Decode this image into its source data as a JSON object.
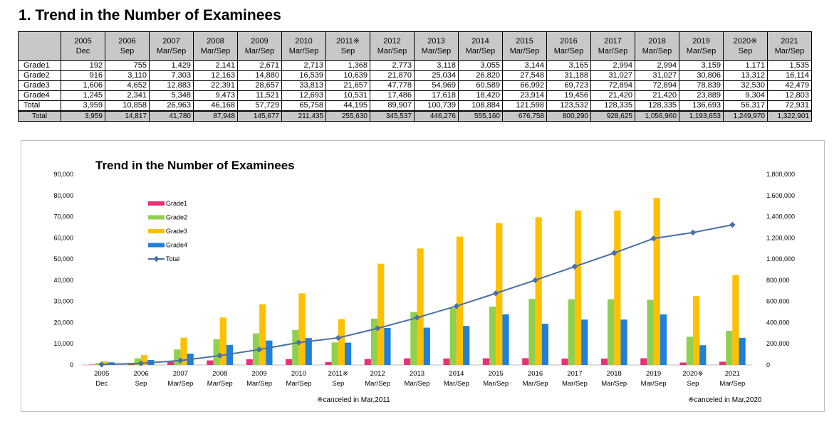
{
  "page": {
    "title": "1.  Trend in the Number of Examinees"
  },
  "table": {
    "headers": [
      [
        "2005",
        "Dec"
      ],
      [
        "2006",
        "Sep"
      ],
      [
        "2007",
        "Mar/Sep"
      ],
      [
        "2008",
        "Mar/Sep"
      ],
      [
        "2009",
        "Mar/Sep"
      ],
      [
        "2010",
        "Mar/Sep"
      ],
      [
        "2011※",
        "Sep"
      ],
      [
        "2012",
        "Mar/Sep"
      ],
      [
        "2013",
        "Mar/Sep"
      ],
      [
        "2014",
        "Mar/Sep"
      ],
      [
        "2015",
        "Mar/Sep"
      ],
      [
        "2016",
        "Mar/Sep"
      ],
      [
        "2017",
        "Mar/Sep"
      ],
      [
        "2018",
        "Mar/Sep"
      ],
      [
        "2019",
        "Mar/Sep"
      ],
      [
        "2020※",
        "Sep"
      ],
      [
        "2021",
        "Mar/Sep"
      ]
    ],
    "rows": [
      {
        "label": "Grade1",
        "values": [
          "192",
          "755",
          "1,429",
          "2,141",
          "2,671",
          "2,713",
          "1,368",
          "2,773",
          "3,118",
          "3,055",
          "3,144",
          "3,165",
          "2,994",
          "2,994",
          "3,159",
          "1,171",
          "1,535"
        ]
      },
      {
        "label": "Grade2",
        "values": [
          "916",
          "3,110",
          "7,303",
          "12,163",
          "14,880",
          "16,539",
          "10,639",
          "21,870",
          "25,034",
          "26,820",
          "27,548",
          "31,188",
          "31,027",
          "31,027",
          "30,806",
          "13,312",
          "16,114"
        ]
      },
      {
        "label": "Grade3",
        "values": [
          "1,606",
          "4,652",
          "12,883",
          "22,391",
          "28,657",
          "33,813",
          "21,657",
          "47,778",
          "54,969",
          "60,589",
          "66,992",
          "69,723",
          "72,894",
          "72,894",
          "78,839",
          "32,530",
          "42,479"
        ]
      },
      {
        "label": "Grade4",
        "values": [
          "1,245",
          "2,341",
          "5,348",
          "9,473",
          "11,521",
          "12,693",
          "10,531",
          "17,486",
          "17,618",
          "18,420",
          "23,914",
          "19,456",
          "21,420",
          "21,420",
          "23,889",
          "9,304",
          "12,803"
        ]
      },
      {
        "label": "Total",
        "values": [
          "3,959",
          "10,858",
          "26,963",
          "46,168",
          "57,729",
          "65,758",
          "44,195",
          "89,907",
          "100,739",
          "108,884",
          "121,598",
          "123,532",
          "128,335",
          "128,335",
          "136,693",
          "56,317",
          "72,931"
        ]
      }
    ],
    "grand_total": {
      "label": "Total",
      "values": [
        "3,959",
        "14,817",
        "41,780",
        "87,948",
        "145,677",
        "211,435",
        "255,630",
        "345,537",
        "446,276",
        "555,160",
        "676,758",
        "800,290",
        "928,625",
        "1,056,960",
        "1,193,653",
        "1,249,970",
        "1,322,901"
      ]
    }
  },
  "chart_data": {
    "type": "bar",
    "title": "Trend in the Number of Examinees",
    "categories": [
      [
        "2005",
        "Dec"
      ],
      [
        "2006",
        "Sep"
      ],
      [
        "2007",
        "Mar/Sep"
      ],
      [
        "2008",
        "Mar/Sep"
      ],
      [
        "2009",
        "Mar/Sep"
      ],
      [
        "2010",
        "Mar/Sep"
      ],
      [
        "2011※",
        "Sep"
      ],
      [
        "2012",
        "Mar/Sep"
      ],
      [
        "2013",
        "Mar/Sep"
      ],
      [
        "2014",
        "Mar/Sep"
      ],
      [
        "2015",
        "Mar/Sep"
      ],
      [
        "2016",
        "Mar/Sep"
      ],
      [
        "2017",
        "Mar/Sep"
      ],
      [
        "2018",
        "Mar/Sep"
      ],
      [
        "2019",
        "Mar/Sep"
      ],
      [
        "2020※",
        "Sep"
      ],
      [
        "2021",
        "Mar/Sep"
      ]
    ],
    "series": [
      {
        "name": "Grade1",
        "type": "bar",
        "axis": "left",
        "color": "#e8317a",
        "values": [
          192,
          755,
          1429,
          2141,
          2671,
          2713,
          1368,
          2773,
          3118,
          3055,
          3144,
          3165,
          2994,
          2994,
          3159,
          1171,
          1535
        ]
      },
      {
        "name": "Grade2",
        "type": "bar",
        "axis": "left",
        "color": "#8fd14f",
        "values": [
          916,
          3110,
          7303,
          12163,
          14880,
          16539,
          10639,
          21870,
          25034,
          26820,
          27548,
          31188,
          31027,
          31027,
          30806,
          13312,
          16114
        ]
      },
      {
        "name": "Grade3",
        "type": "bar",
        "axis": "left",
        "color": "#ffc000",
        "values": [
          1606,
          4652,
          12883,
          22391,
          28657,
          33813,
          21657,
          47778,
          54969,
          60589,
          66992,
          69723,
          72894,
          72894,
          78839,
          32530,
          42479
        ]
      },
      {
        "name": "Grade4",
        "type": "bar",
        "axis": "left",
        "color": "#1f7fd9",
        "values": [
          1245,
          2341,
          5348,
          9473,
          11521,
          12693,
          10531,
          17486,
          17618,
          18420,
          23914,
          19456,
          21420,
          21420,
          23889,
          9304,
          12803
        ]
      },
      {
        "name": "Total",
        "type": "line",
        "axis": "right",
        "color": "#4a6fa5",
        "values": [
          3959,
          14817,
          41780,
          87948,
          145677,
          211435,
          255630,
          345537,
          446276,
          555160,
          676758,
          800290,
          928625,
          1056960,
          1193653,
          1249970,
          1322901
        ]
      }
    ],
    "ylim": [
      0,
      90000
    ],
    "y2lim": [
      0,
      1800000
    ],
    "yticks": [
      "0",
      "10,000",
      "20,000",
      "30,000",
      "40,000",
      "50,000",
      "60,000",
      "70,000",
      "80,000",
      "90,000"
    ],
    "y2ticks": [
      "0",
      "200,000",
      "400,000",
      "600,000",
      "800,000",
      "1,000,000",
      "1,200,000",
      "1,400,000",
      "1,600,000",
      "1,800,000"
    ],
    "legend_position": "upper-left",
    "grid": true,
    "notes": [
      "※canceled in Mar,2011",
      "※canceled in Mar,2020"
    ]
  }
}
